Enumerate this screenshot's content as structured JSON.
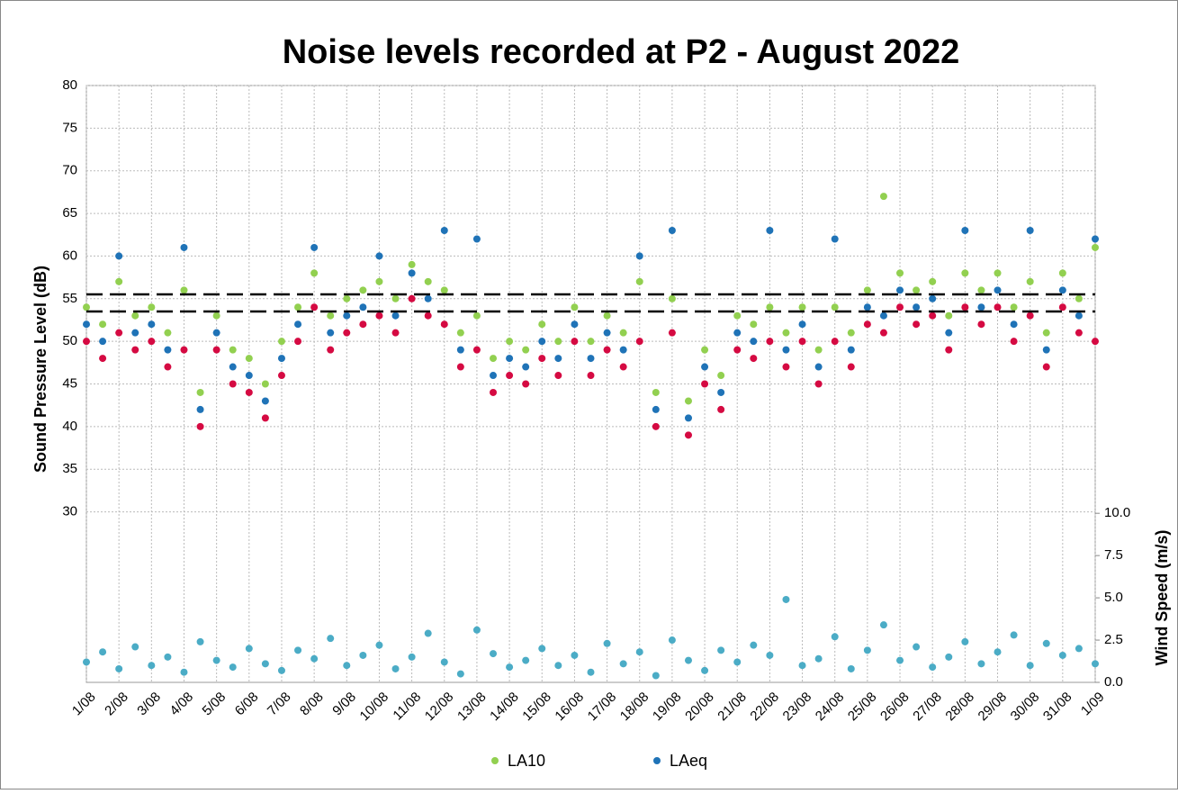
{
  "chart_data": {
    "type": "scatter",
    "title": "Noise levels recorded at P2 - August 2022",
    "y_label": "Sound Pressure Level (dB)",
    "y2_label": "Wind Speed (m/s)",
    "x": [
      1,
      1.5,
      2,
      2.5,
      3,
      3.5,
      4,
      4.5,
      5,
      5.5,
      6,
      6.5,
      7,
      7.5,
      8,
      8.5,
      9,
      9.5,
      10,
      10.5,
      11,
      11.5,
      12,
      12.5,
      13,
      13.5,
      14,
      14.5,
      15,
      15.5,
      16,
      16.5,
      17,
      17.5,
      18,
      18.5,
      19,
      19.5,
      20,
      20.5,
      21,
      21.5,
      22,
      22.5,
      23,
      23.5,
      24,
      24.5,
      25,
      25.5,
      26,
      26.5,
      27,
      27.5,
      28,
      28.5,
      29,
      29.5,
      30,
      30.5,
      31,
      31.5,
      32
    ],
    "series": [
      {
        "name": "LA10",
        "color": "#92d050",
        "values": [
          54,
          52,
          57,
          53,
          54,
          51,
          56,
          44,
          53,
          49,
          48,
          45,
          50,
          54,
          58,
          53,
          55,
          56,
          57,
          55,
          59,
          57,
          56,
          51,
          53,
          48,
          50,
          49,
          52,
          50,
          54,
          50,
          53,
          51,
          57,
          44,
          55,
          43,
          49,
          46,
          53,
          52,
          54,
          51,
          54,
          49,
          54,
          51,
          56,
          67,
          58,
          56,
          57,
          53,
          58,
          56,
          58,
          54,
          57,
          51,
          58,
          55,
          61
        ]
      },
      {
        "name": "LAeq",
        "color": "#1f73b7",
        "values": [
          52,
          50,
          60,
          51,
          52,
          49,
          61,
          42,
          51,
          47,
          46,
          43,
          48,
          52,
          61,
          51,
          53,
          54,
          60,
          53,
          58,
          55,
          63,
          49,
          62,
          46,
          48,
          47,
          50,
          48,
          52,
          48,
          51,
          49,
          60,
          42,
          63,
          41,
          47,
          44,
          51,
          50,
          63,
          49,
          52,
          47,
          62,
          49,
          54,
          53,
          56,
          54,
          55,
          51,
          63,
          54,
          56,
          52,
          63,
          49,
          56,
          53,
          62
        ]
      },
      {
        "color": "#d50a42",
        "values": [
          50,
          48,
          51,
          49,
          50,
          47,
          49,
          40,
          49,
          45,
          44,
          41,
          46,
          50,
          54,
          49,
          51,
          52,
          53,
          51,
          55,
          53,
          52,
          47,
          49,
          44,
          46,
          45,
          48,
          46,
          50,
          46,
          49,
          47,
          50,
          40,
          51,
          39,
          45,
          42,
          49,
          48,
          50,
          47,
          50,
          45,
          50,
          47,
          52,
          51,
          54,
          52,
          53,
          49,
          54,
          52,
          54,
          50,
          53,
          47,
          54,
          51,
          50
        ]
      },
      {
        "color": "#4bacc6",
        "axis": "y2",
        "values": [
          1.2,
          1.8,
          0.8,
          2.1,
          1.0,
          1.5,
          0.6,
          2.4,
          1.3,
          0.9,
          2.0,
          1.1,
          0.7,
          1.9,
          1.4,
          2.6,
          1.0,
          1.6,
          2.2,
          0.8,
          1.5,
          2.9,
          1.2,
          0.5,
          3.1,
          1.7,
          0.9,
          1.3,
          2.0,
          1.0,
          1.6,
          0.6,
          2.3,
          1.1,
          1.8,
          0.4,
          2.5,
          1.3,
          0.7,
          1.9,
          1.2,
          2.2,
          1.6,
          4.9,
          1.0,
          1.4,
          2.7,
          0.8,
          1.9,
          3.4,
          1.3,
          2.1,
          0.9,
          1.5,
          2.4,
          1.1,
          1.8,
          2.8,
          1.0,
          2.3,
          1.6,
          2.0,
          1.1
        ]
      }
    ],
    "reference_lines": [
      55.5,
      53.5
    ],
    "xlim": [
      1,
      32
    ],
    "xticks": [
      {
        "value": 1,
        "label": "1/08"
      },
      {
        "value": 2,
        "label": "2/08"
      },
      {
        "value": 3,
        "label": "3/08"
      },
      {
        "value": 4,
        "label": "4/08"
      },
      {
        "value": 5,
        "label": "5/08"
      },
      {
        "value": 6,
        "label": "6/08"
      },
      {
        "value": 7,
        "label": "7/08"
      },
      {
        "value": 8,
        "label": "8/08"
      },
      {
        "value": 9,
        "label": "9/08"
      },
      {
        "value": 10,
        "label": "10/08"
      },
      {
        "value": 11,
        "label": "11/08"
      },
      {
        "value": 12,
        "label": "12/08"
      },
      {
        "value": 13,
        "label": "13/08"
      },
      {
        "value": 14,
        "label": "14/08"
      },
      {
        "value": 15,
        "label": "15/08"
      },
      {
        "value": 16,
        "label": "16/08"
      },
      {
        "value": 17,
        "label": "17/08"
      },
      {
        "value": 18,
        "label": "18/08"
      },
      {
        "value": 19,
        "label": "19/08"
      },
      {
        "value": 20,
        "label": "20/08"
      },
      {
        "value": 21,
        "label": "21/08"
      },
      {
        "value": 22,
        "label": "22/08"
      },
      {
        "value": 23,
        "label": "23/08"
      },
      {
        "value": 24,
        "label": "24/08"
      },
      {
        "value": 25,
        "label": "25/08"
      },
      {
        "value": 26,
        "label": "26/08"
      },
      {
        "value": 27,
        "label": "27/08"
      },
      {
        "value": 28,
        "label": "28/08"
      },
      {
        "value": 29,
        "label": "29/08"
      },
      {
        "value": 30,
        "label": "30/08"
      },
      {
        "value": 31,
        "label": "31/08"
      },
      {
        "value": 32,
        "label": "1/09"
      }
    ],
    "ylim": [
      10,
      80
    ],
    "yticks": [
      30,
      35,
      40,
      45,
      50,
      55,
      60,
      65,
      70,
      75,
      80
    ],
    "y2lim": [
      0,
      35.3
    ],
    "y2ticks": [
      {
        "value": 0,
        "label": "0.0"
      },
      {
        "value": 2.5,
        "label": "2.5"
      },
      {
        "value": 5,
        "label": "5.0"
      },
      {
        "value": 7.5,
        "label": "7.5"
      },
      {
        "value": 10,
        "label": "10.0"
      }
    ],
    "grid": true,
    "legend": "bottom"
  }
}
